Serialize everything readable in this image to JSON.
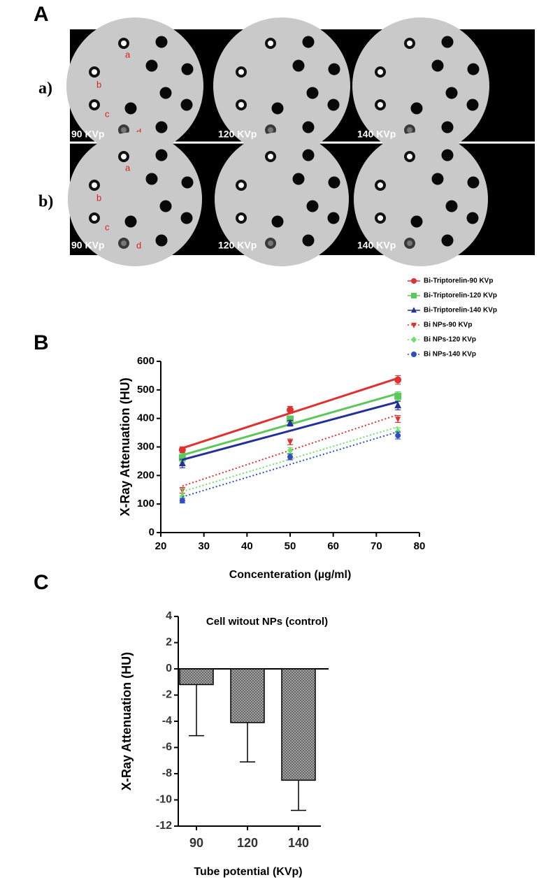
{
  "panel_labels": [
    "A",
    "B",
    "C"
  ],
  "phantom": {
    "rows": [
      {
        "label": "a)",
        "vials": [
          "a",
          "b",
          "c",
          "d"
        ],
        "voltages": [
          "90 KVp",
          "120 KVp",
          "140 KVp"
        ]
      },
      {
        "label": "b)",
        "vials": [
          "a",
          "b",
          "c",
          "d"
        ],
        "voltages": [
          "90 KVp",
          "120 KVp",
          "140 KVp"
        ]
      }
    ]
  },
  "chart_data": [
    {
      "type": "scatter",
      "x_label": "Concenteration  (µg/ml)",
      "y_label": "X-Ray Attenuation (HU)",
      "x": [
        25,
        50,
        75
      ],
      "xlim": [
        20,
        80
      ],
      "xticks": [
        20,
        30,
        40,
        50,
        60,
        70,
        80
      ],
      "ylim": [
        0,
        600
      ],
      "yticks": [
        0,
        100,
        200,
        300,
        400,
        500,
        600
      ],
      "legend": "upper-right",
      "fit_lines": true,
      "series": [
        {
          "name": "Bi-Triptorelin-90 KVp",
          "color": "#e03131",
          "marker": "circle",
          "line_style": "solid",
          "values": [
            290,
            430,
            535
          ],
          "errors": [
            10,
            12,
            15
          ]
        },
        {
          "name": "Bi-Triptorelin-120 KVp",
          "color": "#5cc85c",
          "marker": "square",
          "line_style": "solid",
          "values": [
            262,
            398,
            478
          ],
          "errors": [
            15,
            10,
            15
          ]
        },
        {
          "name": "Bi-Triptorelin-140 KVp",
          "color": "#24309a",
          "marker": "triangle-up",
          "line_style": "solid",
          "values": [
            242,
            383,
            445
          ],
          "errors": [
            15,
            10,
            15
          ]
        },
        {
          "name": "Bi NPs-90 KVp",
          "color": "#e03131",
          "marker": "triangle-down",
          "line_style": "dotted",
          "values": [
            148,
            318,
            398
          ],
          "errors": [
            10,
            10,
            12
          ]
        },
        {
          "name": "Bi NPs-120 KVp",
          "color": "#6ee06e",
          "marker": "diamond",
          "line_style": "dotted",
          "values": [
            128,
            288,
            355
          ],
          "errors": [
            25,
            10,
            12
          ]
        },
        {
          "name": "Bi NPs-140 KVp",
          "color": "#2f4fc0",
          "marker": "circle",
          "line_style": "dotted",
          "values": [
            112,
            265,
            340
          ],
          "errors": [
            8,
            10,
            12
          ]
        }
      ]
    },
    {
      "type": "bar",
      "title": "Cell witout NPs (control)",
      "x_label": "Tube potential (KVp)",
      "y_label": "X-Ray Attenuation (HU)",
      "categories": [
        "90",
        "120",
        "140"
      ],
      "values": [
        -1.2,
        -4.1,
        -8.5
      ],
      "errors": [
        3.9,
        3.0,
        2.3
      ],
      "ylim": [
        -12,
        4
      ],
      "yticks": [
        -12,
        -10,
        -8,
        -6,
        -4,
        -2,
        0,
        2,
        4
      ],
      "color": "#9a9a9a"
    }
  ]
}
